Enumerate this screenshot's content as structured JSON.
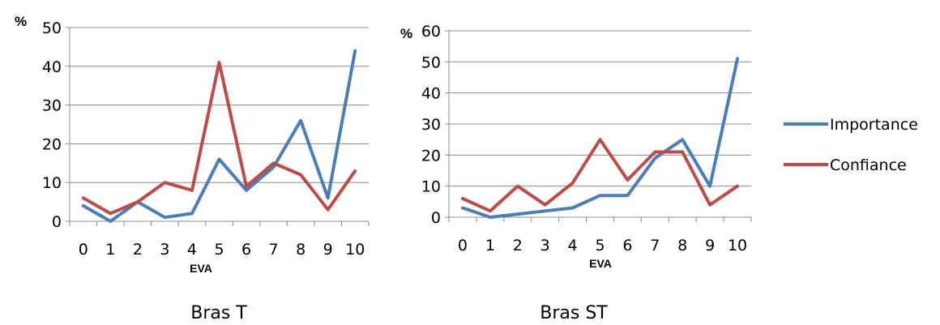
{
  "chart_data": [
    {
      "type": "line",
      "caption": "Bras T",
      "ylabel": "%",
      "xlabel": "EVA",
      "ylim": [
        0,
        50
      ],
      "yticks": [
        0,
        10,
        20,
        30,
        40,
        50
      ],
      "categories": [
        "0",
        "1",
        "2",
        "3",
        "4",
        "5",
        "6",
        "7",
        "8",
        "9",
        "10"
      ],
      "grid": true,
      "series": [
        {
          "name": "Importance",
          "color": "#4a7ebb",
          "values": [
            4,
            0,
            5,
            1,
            2,
            16,
            8,
            14,
            26,
            6,
            44
          ]
        },
        {
          "name": "Confiance",
          "color": "#be4b48",
          "values": [
            6,
            2,
            5,
            10,
            8,
            41,
            9,
            15,
            12,
            3,
            13
          ]
        }
      ]
    },
    {
      "type": "line",
      "caption": "Bras ST",
      "ylabel": "%",
      "xlabel": "EVA",
      "ylim": [
        0,
        60
      ],
      "yticks": [
        0,
        10,
        20,
        30,
        40,
        50,
        60
      ],
      "categories": [
        "0",
        "1",
        "2",
        "3",
        "4",
        "5",
        "6",
        "7",
        "8",
        "9",
        "10"
      ],
      "grid": true,
      "series": [
        {
          "name": "Importance",
          "color": "#4a7ebb",
          "values": [
            3,
            0,
            1,
            2,
            3,
            7,
            7,
            19,
            25,
            10,
            51
          ]
        },
        {
          "name": "Confiance",
          "color": "#be4b48",
          "values": [
            6,
            2,
            10,
            4,
            11,
            25,
            12,
            21,
            21,
            4,
            10
          ]
        }
      ]
    }
  ],
  "legend": {
    "placement": "right",
    "items": [
      {
        "label": "Importance",
        "color": "#4a7ebb"
      },
      {
        "label": "Confiance",
        "color": "#be4b48"
      }
    ]
  }
}
